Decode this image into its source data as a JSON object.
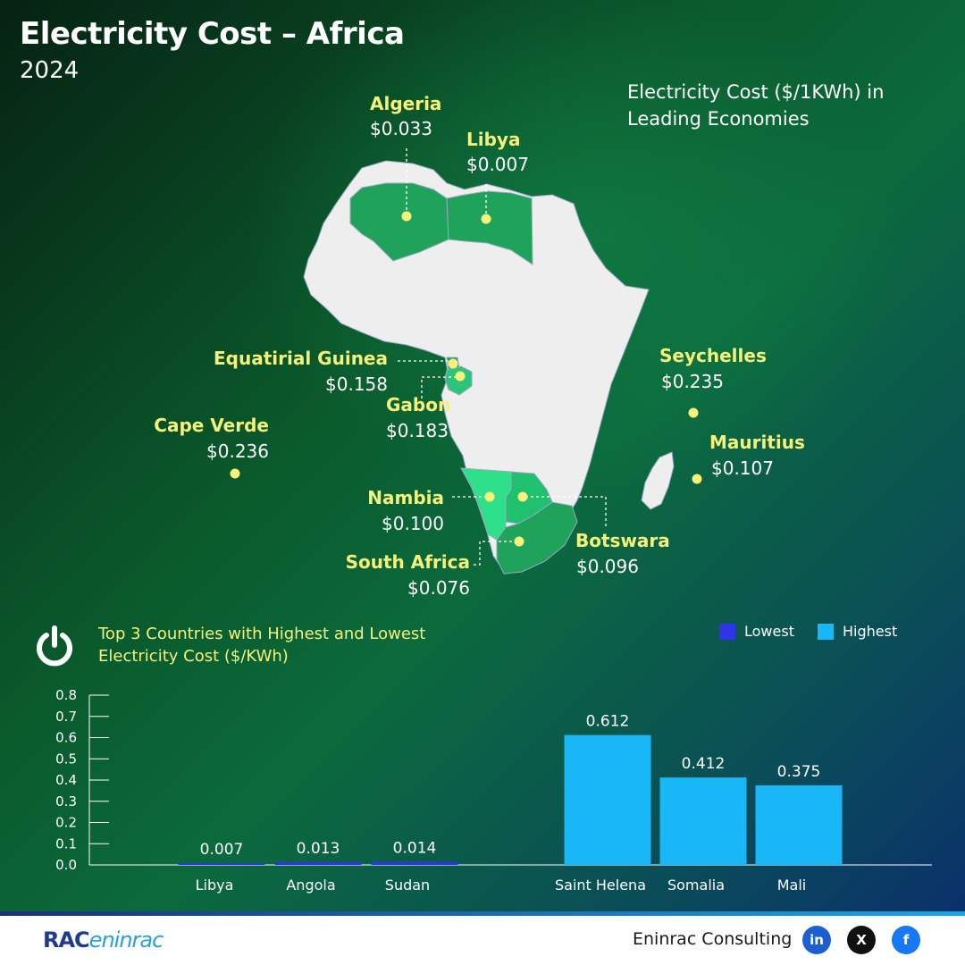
{
  "header": {
    "title": "Electricity Cost – Africa",
    "year": "2024"
  },
  "map": {
    "caption": "Electricity Cost ($/1KWh) in Leading Economies",
    "countries": [
      {
        "name": "Algeria",
        "value": "$0.033"
      },
      {
        "name": "Libya",
        "value": "$0.007"
      },
      {
        "name": "Equatirial Guinea",
        "value": "$0.158"
      },
      {
        "name": "Gabon",
        "value": "$0.183"
      },
      {
        "name": "Cape Verde",
        "value": "$0.236"
      },
      {
        "name": "Seychelles",
        "value": "$0.235"
      },
      {
        "name": "Mauritius",
        "value": "$0.107"
      },
      {
        "name": "Nambia",
        "value": "$0.100"
      },
      {
        "name": "Botswara",
        "value": "$0.096"
      },
      {
        "name": "South Africa",
        "value": "$0.076"
      }
    ],
    "colors": {
      "land": "#eeeeee",
      "highlight": "#1fa35a",
      "marker": "#f7f27a"
    }
  },
  "chart": {
    "title": "Top 3 Countries with Highest and Lowest Electricity Cost ($/KWh)",
    "legend": [
      {
        "label": "Lowest",
        "color": "#2d35e6"
      },
      {
        "label": "Highest",
        "color": "#19b7f5"
      }
    ]
  },
  "chart_data": {
    "type": "bar",
    "categories": [
      "Libya",
      "Angola",
      "Sudan",
      "Saint Helena",
      "Somalia",
      "Mali"
    ],
    "values": [
      0.007,
      0.013,
      0.014,
      0.612,
      0.412,
      0.375
    ],
    "value_labels": [
      "0.007",
      "0.013",
      "0.014",
      "0.612",
      "0.412",
      "0.375"
    ],
    "groups": [
      "Lowest",
      "Lowest",
      "Lowest",
      "Highest",
      "Highest",
      "Highest"
    ],
    "yticks": [
      "0.8",
      "0.7",
      "0.6",
      "0.5",
      "0.4",
      "0.3",
      "0.2",
      "0.1",
      "0.0"
    ],
    "ylim": [
      0,
      0.8
    ],
    "grid": false,
    "legend_position": "top-right"
  },
  "footer": {
    "logo_main": "RAC",
    "logo_alt": "eninrac",
    "brand": "Eninrac Consulting",
    "social": [
      "in",
      "X",
      "f"
    ]
  }
}
